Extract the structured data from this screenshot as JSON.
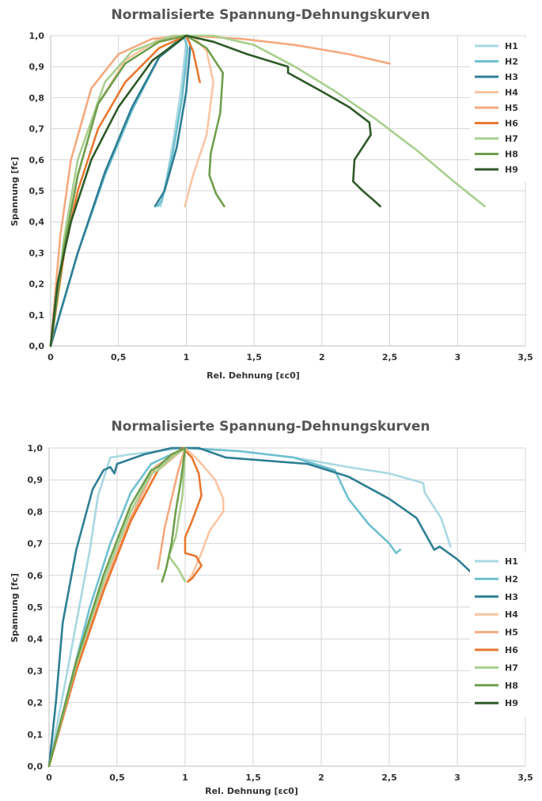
{
  "chart_data": [
    {
      "type": "line",
      "title": "Normalisierte Spannung-Dehnungskurven",
      "xlabel": "Rel. Dehnung [ɛc0]",
      "ylabel": "Spannung [fc]",
      "xlim": [
        0,
        3.5
      ],
      "ylim": [
        0,
        1.0
      ],
      "xticks": [
        "0",
        "0,5",
        "1",
        "1,5",
        "2",
        "2,5",
        "3",
        "3,5"
      ],
      "yticks": [
        "0,0",
        "0,1",
        "0,2",
        "0,3",
        "0,4",
        "0,5",
        "0,6",
        "0,7",
        "0,8",
        "0,9",
        "1,0"
      ],
      "grid": true,
      "legend_position": "right",
      "series": [
        {
          "name": "H1",
          "color": "#a9d8e2",
          "points": [
            [
              0,
              0
            ],
            [
              0.2,
              0.3
            ],
            [
              0.4,
              0.55
            ],
            [
              0.6,
              0.76
            ],
            [
              0.8,
              0.93
            ],
            [
              0.97,
              1.0
            ],
            [
              1.0,
              0.98
            ],
            [
              0.96,
              0.82
            ],
            [
              0.9,
              0.65
            ],
            [
              0.84,
              0.5
            ],
            [
              0.81,
              0.45
            ]
          ]
        },
        {
          "name": "H2",
          "color": "#6fc0d0",
          "points": [
            [
              0,
              0
            ],
            [
              0.2,
              0.3
            ],
            [
              0.4,
              0.55
            ],
            [
              0.6,
              0.76
            ],
            [
              0.8,
              0.93
            ],
            [
              0.98,
              1.0
            ],
            [
              1.01,
              0.96
            ],
            [
              0.97,
              0.8
            ],
            [
              0.9,
              0.62
            ],
            [
              0.82,
              0.47
            ],
            [
              0.79,
              0.45
            ]
          ]
        },
        {
          "name": "H3",
          "color": "#2f7f94",
          "points": [
            [
              0,
              0
            ],
            [
              0.2,
              0.3
            ],
            [
              0.4,
              0.56
            ],
            [
              0.6,
              0.77
            ],
            [
              0.8,
              0.93
            ],
            [
              1.0,
              1.0
            ],
            [
              1.03,
              0.97
            ],
            [
              1.0,
              0.82
            ],
            [
              0.93,
              0.64
            ],
            [
              0.84,
              0.5
            ],
            [
              0.77,
              0.45
            ]
          ]
        },
        {
          "name": "H4",
          "color": "#f9c6a3",
          "points": [
            [
              0,
              0
            ],
            [
              0.1,
              0.3
            ],
            [
              0.2,
              0.55
            ],
            [
              0.35,
              0.78
            ],
            [
              0.55,
              0.92
            ],
            [
              0.8,
              0.99
            ],
            [
              1.05,
              1.0
            ],
            [
              1.15,
              0.95
            ],
            [
              1.2,
              0.85
            ],
            [
              1.15,
              0.68
            ],
            [
              1.05,
              0.55
            ],
            [
              0.99,
              0.45
            ]
          ]
        },
        {
          "name": "H5",
          "color": "#f5a97f",
          "points": [
            [
              0,
              0
            ],
            [
              0.07,
              0.35
            ],
            [
              0.15,
              0.6
            ],
            [
              0.3,
              0.83
            ],
            [
              0.5,
              0.94
            ],
            [
              0.75,
              0.99
            ],
            [
              1.0,
              1.0
            ],
            [
              1.4,
              0.99
            ],
            [
              1.8,
              0.97
            ],
            [
              2.2,
              0.94
            ],
            [
              2.5,
              0.91
            ]
          ]
        },
        {
          "name": "H6",
          "color": "#e87830",
          "points": [
            [
              0,
              0
            ],
            [
              0.1,
              0.3
            ],
            [
              0.2,
              0.5
            ],
            [
              0.35,
              0.7
            ],
            [
              0.55,
              0.85
            ],
            [
              0.8,
              0.96
            ],
            [
              1.0,
              1.0
            ],
            [
              1.05,
              0.95
            ],
            [
              1.1,
              0.85
            ]
          ]
        },
        {
          "name": "H7",
          "color": "#a8cf8e",
          "points": [
            [
              0,
              0
            ],
            [
              0.1,
              0.35
            ],
            [
              0.2,
              0.6
            ],
            [
              0.4,
              0.85
            ],
            [
              0.6,
              0.95
            ],
            [
              0.9,
              1.0
            ],
            [
              1.2,
              1.0
            ],
            [
              1.5,
              0.97
            ],
            [
              1.8,
              0.9
            ],
            [
              2.1,
              0.82
            ],
            [
              2.4,
              0.73
            ],
            [
              2.7,
              0.63
            ],
            [
              3.0,
              0.52
            ],
            [
              3.2,
              0.45
            ]
          ]
        },
        {
          "name": "H8",
          "color": "#6f9e4c",
          "points": [
            [
              0,
              0
            ],
            [
              0.1,
              0.32
            ],
            [
              0.2,
              0.55
            ],
            [
              0.35,
              0.78
            ],
            [
              0.55,
              0.91
            ],
            [
              0.8,
              0.98
            ],
            [
              1.0,
              1.0
            ],
            [
              1.15,
              0.96
            ],
            [
              1.27,
              0.88
            ],
            [
              1.25,
              0.75
            ],
            [
              1.18,
              0.62
            ],
            [
              1.17,
              0.55
            ],
            [
              1.22,
              0.49
            ],
            [
              1.28,
              0.45
            ]
          ]
        },
        {
          "name": "H9",
          "color": "#2e5a27",
          "points": [
            [
              0,
              0
            ],
            [
              0.05,
              0.2
            ],
            [
              0.15,
              0.4
            ],
            [
              0.3,
              0.6
            ],
            [
              0.5,
              0.77
            ],
            [
              0.75,
              0.92
            ],
            [
              1.0,
              1.0
            ],
            [
              1.2,
              0.98
            ],
            [
              1.45,
              0.94
            ],
            [
              1.75,
              0.9
            ],
            [
              1.75,
              0.88
            ],
            [
              2.0,
              0.82
            ],
            [
              2.2,
              0.77
            ],
            [
              2.35,
              0.72
            ],
            [
              2.36,
              0.68
            ],
            [
              2.3,
              0.64
            ],
            [
              2.24,
              0.6
            ],
            [
              2.23,
              0.53
            ],
            [
              2.3,
              0.5
            ],
            [
              2.38,
              0.47
            ],
            [
              2.43,
              0.45
            ]
          ]
        }
      ]
    },
    {
      "type": "line",
      "title": "Normalisierte Spannung-Dehnungskurven",
      "xlabel": "Rel. Dehnung [ɛc0]",
      "ylabel": "Spannung [fc]",
      "xlim": [
        0,
        3.5
      ],
      "ylim": [
        0,
        1.0
      ],
      "xticks": [
        "0",
        "0,5",
        "1",
        "1,5",
        "2",
        "2,5",
        "3",
        "3,5"
      ],
      "yticks": [
        "0,0",
        "0,1",
        "0,2",
        "0,3",
        "0,4",
        "0,5",
        "0,6",
        "0,7",
        "0,8",
        "0,9",
        "1,0"
      ],
      "grid": true,
      "legend_position": "right",
      "series": [
        {
          "name": "H1",
          "color": "#a9d8e2",
          "points": [
            [
              0,
              0
            ],
            [
              0.1,
              0.22
            ],
            [
              0.2,
              0.45
            ],
            [
              0.3,
              0.68
            ],
            [
              0.36,
              0.85
            ],
            [
              0.45,
              0.97
            ],
            [
              0.6,
              0.98
            ],
            [
              0.8,
              0.99
            ],
            [
              1.0,
              1.0
            ],
            [
              1.4,
              0.99
            ],
            [
              1.8,
              0.97
            ],
            [
              2.2,
              0.94
            ],
            [
              2.5,
              0.92
            ],
            [
              2.75,
              0.89
            ],
            [
              2.76,
              0.86
            ],
            [
              2.88,
              0.78
            ],
            [
              2.95,
              0.69
            ]
          ]
        },
        {
          "name": "H2",
          "color": "#6fc0d0",
          "points": [
            [
              0,
              0
            ],
            [
              0.15,
              0.25
            ],
            [
              0.3,
              0.5
            ],
            [
              0.45,
              0.7
            ],
            [
              0.6,
              0.86
            ],
            [
              0.75,
              0.95
            ],
            [
              1.0,
              1.0
            ],
            [
              1.4,
              0.99
            ],
            [
              1.8,
              0.97
            ],
            [
              2.1,
              0.93
            ],
            [
              2.2,
              0.84
            ],
            [
              2.35,
              0.76
            ],
            [
              2.5,
              0.7
            ],
            [
              2.55,
              0.67
            ],
            [
              2.58,
              0.68
            ]
          ]
        },
        {
          "name": "H3",
          "color": "#2f7f94",
          "points": [
            [
              0,
              0
            ],
            [
              0.05,
              0.2
            ],
            [
              0.1,
              0.45
            ],
            [
              0.2,
              0.68
            ],
            [
              0.32,
              0.87
            ],
            [
              0.4,
              0.93
            ],
            [
              0.45,
              0.94
            ],
            [
              0.48,
              0.92
            ],
            [
              0.5,
              0.95
            ],
            [
              0.7,
              0.98
            ],
            [
              0.9,
              1.0
            ],
            [
              1.1,
              1.0
            ],
            [
              1.3,
              0.97
            ],
            [
              1.6,
              0.96
            ],
            [
              1.9,
              0.95
            ],
            [
              2.2,
              0.91
            ],
            [
              2.5,
              0.84
            ],
            [
              2.7,
              0.78
            ],
            [
              2.83,
              0.68
            ],
            [
              2.87,
              0.69
            ],
            [
              3.0,
              0.65
            ],
            [
              3.1,
              0.61
            ]
          ]
        },
        {
          "name": "H4",
          "color": "#f9c6a3",
          "points": [
            [
              0,
              0
            ],
            [
              0.2,
              0.3
            ],
            [
              0.4,
              0.56
            ],
            [
              0.6,
              0.77
            ],
            [
              0.8,
              0.93
            ],
            [
              1.0,
              1.0
            ],
            [
              1.1,
              0.96
            ],
            [
              1.22,
              0.9
            ],
            [
              1.28,
              0.84
            ],
            [
              1.28,
              0.8
            ],
            [
              1.18,
              0.74
            ],
            [
              1.12,
              0.67
            ],
            [
              1.05,
              0.6
            ],
            [
              1.02,
              0.58
            ]
          ]
        },
        {
          "name": "H5",
          "color": "#f5a97f",
          "points": [
            [
              0,
              0
            ],
            [
              0.2,
              0.3
            ],
            [
              0.4,
              0.56
            ],
            [
              0.6,
              0.78
            ],
            [
              0.78,
              0.94
            ],
            [
              0.95,
              0.99
            ],
            [
              1.0,
              1.0
            ],
            [
              0.95,
              0.93
            ],
            [
              0.85,
              0.75
            ],
            [
              0.8,
              0.62
            ]
          ]
        },
        {
          "name": "H6",
          "color": "#e87830",
          "points": [
            [
              0,
              0
            ],
            [
              0.2,
              0.3
            ],
            [
              0.4,
              0.55
            ],
            [
              0.6,
              0.77
            ],
            [
              0.8,
              0.93
            ],
            [
              0.98,
              1.0
            ],
            [
              1.05,
              0.97
            ],
            [
              1.1,
              0.92
            ],
            [
              1.12,
              0.85
            ],
            [
              1.05,
              0.77
            ],
            [
              1.0,
              0.72
            ],
            [
              1.0,
              0.67
            ],
            [
              1.08,
              0.66
            ],
            [
              1.12,
              0.63
            ],
            [
              1.05,
              0.59
            ],
            [
              1.02,
              0.58
            ]
          ]
        },
        {
          "name": "H7",
          "color": "#a8cf8e",
          "points": [
            [
              0,
              0
            ],
            [
              0.2,
              0.32
            ],
            [
              0.4,
              0.58
            ],
            [
              0.6,
              0.8
            ],
            [
              0.75,
              0.92
            ],
            [
              0.8,
              0.93
            ],
            [
              0.9,
              0.97
            ],
            [
              1.0,
              1.0
            ],
            [
              0.98,
              0.85
            ],
            [
              0.93,
              0.72
            ],
            [
              0.88,
              0.66
            ],
            [
              0.95,
              0.62
            ],
            [
              1.0,
              0.58
            ]
          ]
        },
        {
          "name": "H8",
          "color": "#6f9e4c",
          "points": [
            [
              0,
              0
            ],
            [
              0.2,
              0.33
            ],
            [
              0.4,
              0.6
            ],
            [
              0.6,
              0.82
            ],
            [
              0.75,
              0.93
            ],
            [
              0.8,
              0.94
            ],
            [
              0.9,
              0.98
            ],
            [
              1.0,
              1.0
            ],
            [
              0.97,
              0.9
            ],
            [
              0.93,
              0.8
            ],
            [
              0.9,
              0.7
            ],
            [
              0.86,
              0.62
            ],
            [
              0.83,
              0.58
            ]
          ]
        },
        {
          "name": "H9",
          "color": "#2e5a27",
          "points": []
        }
      ]
    }
  ]
}
